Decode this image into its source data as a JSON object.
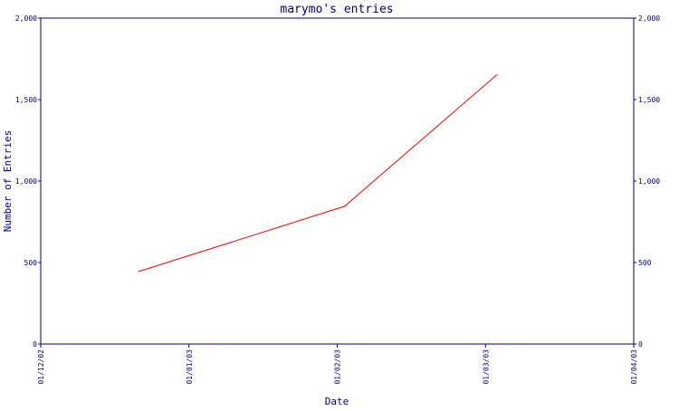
{
  "chart_data": {
    "type": "line",
    "title": "marymo's entries",
    "xlabel": "Date",
    "ylabel": "Number of Entries",
    "x_ticks": [
      "01/12/02",
      "01/01/03",
      "01/02/03",
      "01/03/03",
      "01/04/03"
    ],
    "y_ticks_left": [
      "0",
      "500",
      "1,000",
      "1,500",
      "2,000"
    ],
    "y_ticks_right": [
      "0",
      "500",
      "1,000",
      "1,500",
      "2,000"
    ],
    "ylim": [
      0,
      2000
    ],
    "xlim": [
      "2002-12-01",
      "2003-04-01"
    ],
    "series": [
      {
        "x": [
          "2002-12-21",
          "2003-02-01",
          "2003-03-04"
        ],
        "y": [
          445,
          845,
          1650
        ]
      }
    ],
    "colors": {
      "axis": "#000080",
      "text": "#000080",
      "line": "#ff0000",
      "background": "#ffffff"
    },
    "grid": false,
    "legend": "none"
  }
}
